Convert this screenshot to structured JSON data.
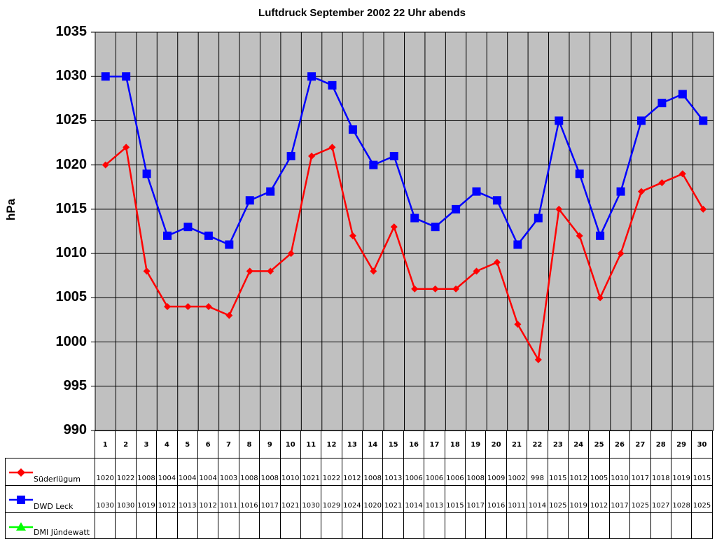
{
  "chart_data": {
    "type": "line",
    "title": "Luftdruck September 2002 22 Uhr abends",
    "xlabel": "",
    "ylabel": "hPa",
    "ylim": [
      990,
      1035
    ],
    "yticks": [
      990,
      995,
      1000,
      1005,
      1010,
      1015,
      1020,
      1025,
      1030,
      1035
    ],
    "grid": true,
    "legend_position": "data-table-left",
    "categories": [
      "1",
      "2",
      "3",
      "4",
      "5",
      "6",
      "7",
      "8",
      "9",
      "10",
      "11",
      "12",
      "13",
      "14",
      "15",
      "16",
      "17",
      "18",
      "19",
      "20",
      "21",
      "22",
      "23",
      "24",
      "25",
      "26",
      "27",
      "28",
      "29",
      "30"
    ],
    "series": [
      {
        "name": "Süderlügum",
        "color": "#ff0000",
        "marker": "diamond",
        "values": [
          1020,
          1022,
          1008,
          1004,
          1004,
          1004,
          1003,
          1008,
          1008,
          1010,
          1021,
          1022,
          1012,
          1008,
          1013,
          1006,
          1006,
          1006,
          1008,
          1009,
          1002,
          998,
          1015,
          1012,
          1005,
          1010,
          1017,
          1018,
          1019,
          1015
        ]
      },
      {
        "name": "DWD Leck",
        "color": "#0000ff",
        "marker": "square",
        "values": [
          1030,
          1030,
          1019,
          1012,
          1013,
          1012,
          1011,
          1016,
          1017,
          1021,
          1030,
          1029,
          1024,
          1020,
          1021,
          1014,
          1013,
          1015,
          1017,
          1016,
          1011,
          1014,
          1025,
          1019,
          1012,
          1017,
          1025,
          1027,
          1028,
          1025
        ]
      },
      {
        "name": "DMI Jündewatt",
        "color": "#00ff00",
        "marker": "triangle",
        "values": [
          null,
          null,
          null,
          null,
          null,
          null,
          null,
          null,
          null,
          null,
          null,
          null,
          null,
          null,
          null,
          null,
          null,
          null,
          null,
          null,
          null,
          null,
          null,
          null,
          null,
          null,
          null,
          null,
          null,
          null
        ]
      }
    ],
    "plot_background": "#c0c0c0"
  }
}
